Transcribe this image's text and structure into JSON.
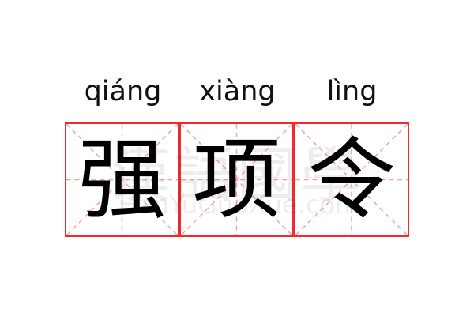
{
  "words": [
    {
      "pinyin": "qiáng",
      "char": "强"
    },
    {
      "pinyin": "xiàng",
      "char": "项"
    },
    {
      "pinyin": "lìng",
      "char": "令"
    }
  ],
  "watermark": {
    "logo": "漢語國學",
    "site": "HanYuGuoXue.com"
  },
  "colors": {
    "border": "#f02a2a",
    "guide": "#f5a0a0",
    "text": "#000000"
  }
}
